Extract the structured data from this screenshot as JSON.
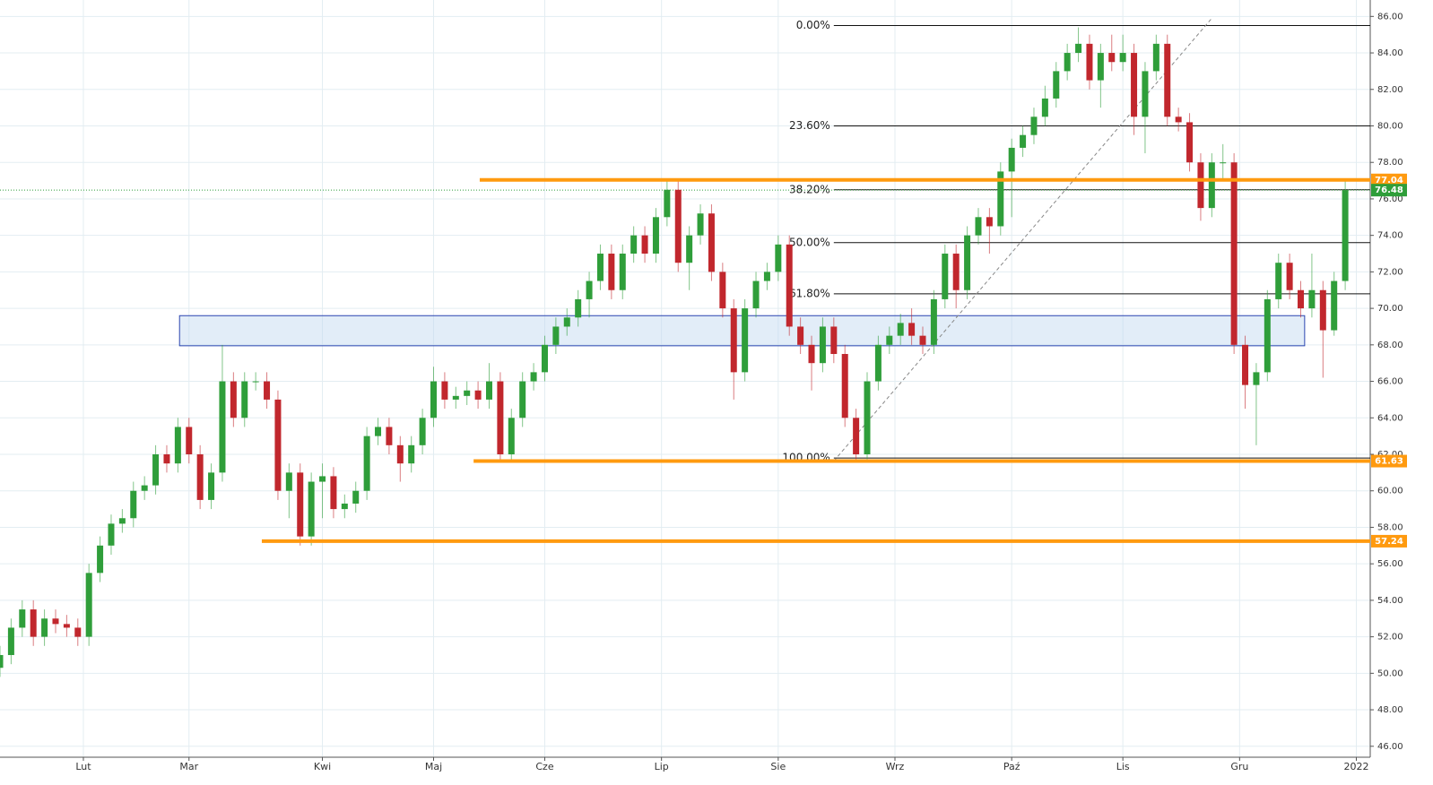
{
  "chart_data": {
    "type": "candlestick",
    "x": [
      0,
      2,
      4,
      6,
      8,
      10,
      12,
      14,
      16,
      18,
      20,
      22,
      24,
      26,
      28,
      30,
      32,
      34,
      36,
      38,
      40,
      42,
      44,
      46,
      48,
      50,
      52,
      54,
      56,
      58,
      60,
      62,
      64,
      66,
      68,
      70,
      72,
      74,
      76,
      78,
      80,
      82,
      84,
      86,
      88,
      90,
      92,
      94,
      96,
      98,
      100,
      102,
      104,
      106,
      108,
      110,
      112,
      114,
      116,
      118,
      120,
      122,
      124,
      126,
      128,
      130,
      132,
      134,
      136,
      138,
      140,
      142,
      144,
      146,
      148,
      150,
      152,
      154,
      156,
      158,
      160,
      162,
      164,
      166,
      168,
      170,
      172,
      174,
      176,
      178,
      180,
      182,
      184,
      186,
      188,
      190,
      192,
      194,
      196,
      198,
      200,
      202,
      204,
      206,
      208,
      210,
      212,
      214,
      216,
      218,
      220,
      222,
      224,
      226,
      228,
      230,
      232,
      234,
      236,
      238,
      240,
      242
    ],
    "open": [
      50.3,
      51,
      52.5,
      53.5,
      52,
      53,
      52.7,
      52.5,
      52,
      55.5,
      57,
      58.2,
      58.5,
      60,
      60.3,
      62,
      61.5,
      63.5,
      62,
      59.5,
      61,
      66,
      64,
      66,
      66,
      65,
      60,
      61,
      57.5,
      60.5,
      60.8,
      59,
      59.3,
      60,
      63,
      63.5,
      62.5,
      61.5,
      62.5,
      64,
      66,
      65,
      65.2,
      65.5,
      65,
      66,
      62,
      64,
      66,
      66.5,
      68,
      69,
      69.5,
      70.5,
      71.5,
      73,
      71,
      73,
      74,
      73,
      75,
      76.5,
      72.5,
      74,
      75.2,
      72,
      70,
      66.5,
      70,
      71.5,
      72,
      73.5,
      69,
      68,
      67,
      69,
      67.5,
      64,
      62,
      66,
      68,
      68.5,
      69.2,
      68.5,
      68,
      70.5,
      73,
      71,
      74,
      75,
      74.5,
      77.5,
      78.8,
      79.5,
      80.5,
      81.5,
      83,
      84,
      84.5,
      82.5,
      84,
      83.5,
      84,
      80.5,
      83,
      84.5,
      80.5,
      80.2,
      78,
      75.5,
      78,
      78,
      68,
      65.8,
      66.5,
      70.5,
      72.5,
      71,
      70,
      71,
      68.8,
      71.5
    ],
    "high": [
      51.5,
      53,
      54,
      54,
      53.5,
      53.5,
      53.2,
      53,
      56,
      57.5,
      58.7,
      59,
      60.5,
      60.8,
      62.5,
      62.5,
      64,
      64,
      62.5,
      61.5,
      68,
      66.5,
      66.5,
      66.5,
      66.5,
      65.5,
      61.5,
      61.5,
      61,
      61.5,
      61.3,
      59.8,
      60.5,
      63.5,
      64,
      64,
      63,
      63,
      64.5,
      66.8,
      66.5,
      65.7,
      66,
      66,
      67,
      66.5,
      64.5,
      66.5,
      67,
      68.5,
      69.5,
      70,
      71,
      72,
      73.5,
      73.5,
      73.5,
      74.5,
      74.5,
      75.5,
      77,
      77,
      74.5,
      75.7,
      75.7,
      72.5,
      70.5,
      70.5,
      72,
      72.5,
      74,
      74,
      69.5,
      68.5,
      69.5,
      69.5,
      68,
      64.5,
      66.5,
      68.5,
      69,
      69.7,
      70,
      69,
      71,
      73.5,
      73.5,
      74.5,
      75.5,
      75.5,
      78,
      79.3,
      80,
      81,
      82.2,
      83.5,
      84.5,
      85.4,
      85,
      84.5,
      85,
      85,
      84.5,
      83.5,
      85,
      85,
      81,
      80.7,
      78.5,
      78.5,
      79,
      78.5,
      68.5,
      67,
      71,
      73,
      73,
      71.5,
      73,
      71.5,
      72,
      77
    ],
    "low": [
      49.8,
      50.5,
      52,
      51.5,
      51.5,
      52.2,
      52,
      51.5,
      51.5,
      55,
      56.5,
      57.7,
      58,
      59.5,
      59.8,
      61,
      61,
      61.5,
      59,
      59,
      60.5,
      63.5,
      63.5,
      65.5,
      64.5,
      59.5,
      58.5,
      57,
      57,
      58.5,
      58.5,
      58.5,
      58.8,
      59.5,
      62.5,
      62,
      60.5,
      61,
      62,
      63.5,
      64.5,
      64.5,
      64.7,
      64.5,
      64.5,
      61.7,
      61.7,
      63.5,
      65.5,
      66,
      67.5,
      68.5,
      69,
      69.5,
      71,
      70.5,
      70.5,
      72.5,
      72.5,
      72.5,
      74.5,
      72,
      71,
      73.5,
      71.5,
      69.5,
      65,
      66,
      69.5,
      71,
      71.5,
      68.5,
      67.5,
      65.5,
      66.5,
      67,
      63.5,
      61.63,
      61.63,
      65.5,
      67.5,
      68,
      68,
      67.5,
      67.5,
      70,
      70,
      70.5,
      73.5,
      73,
      74,
      75,
      78.3,
      79,
      80,
      81,
      82.5,
      83.5,
      82,
      81,
      83,
      83,
      79.5,
      78.5,
      82.5,
      80,
      79.7,
      77.5,
      74.8,
      75,
      77,
      67.5,
      64.5,
      62.5,
      66,
      70,
      70.5,
      69.5,
      69.5,
      66.2,
      68.5,
      71
    ],
    "close": [
      51,
      52.5,
      53.5,
      52,
      53,
      52.7,
      52.5,
      52,
      55.5,
      57,
      58.2,
      58.5,
      60,
      60.3,
      62,
      61.5,
      63.5,
      62,
      59.5,
      61,
      66,
      64,
      66,
      66,
      65,
      60,
      61,
      57.5,
      60.5,
      60.8,
      59,
      59.3,
      60,
      63,
      63.5,
      62.5,
      61.5,
      62.5,
      64,
      66,
      65,
      65.2,
      65.5,
      65,
      66,
      62,
      64,
      66,
      66.5,
      68,
      69,
      69.5,
      70.5,
      71.5,
      73,
      71,
      73,
      74,
      73,
      75,
      76.5,
      72.5,
      74,
      75.2,
      72,
      70,
      66.5,
      70,
      71.5,
      72,
      73.5,
      69,
      68,
      67,
      69,
      67.5,
      64,
      62,
      66,
      68,
      68.5,
      69.2,
      68.5,
      68,
      70.5,
      73,
      71,
      74,
      75,
      74.5,
      77.5,
      78.8,
      79.5,
      80.5,
      81.5,
      83,
      84,
      84.5,
      82.5,
      84,
      83.5,
      84,
      80.5,
      83,
      84.5,
      80.5,
      80.2,
      78,
      75.5,
      78,
      78,
      68,
      65.8,
      66.5,
      70.5,
      72.5,
      71,
      70,
      71,
      68.8,
      71.5,
      76.48
    ],
    "up_color": "#2f9e3a",
    "down_color": "#c1272d",
    "xlim": [
      0,
      246.5
    ],
    "xticks": [
      {
        "value": 15,
        "label": "Lut"
      },
      {
        "value": 34,
        "label": "Mar"
      },
      {
        "value": 58,
        "label": "Kwi"
      },
      {
        "value": 78,
        "label": "Maj"
      },
      {
        "value": 98,
        "label": "Cze"
      },
      {
        "value": 119,
        "label": "Lip"
      },
      {
        "value": 140,
        "label": "Sie"
      },
      {
        "value": 161,
        "label": "Wrz"
      },
      {
        "value": 182,
        "label": "Paź"
      },
      {
        "value": 202,
        "label": "Lis"
      },
      {
        "value": 223,
        "label": "Gru"
      },
      {
        "value": 244,
        "label": "2022"
      }
    ],
    "ylim": [
      45.4,
      86.9
    ],
    "yticks": [
      {
        "value": 46,
        "label": "46.00"
      },
      {
        "value": 48,
        "label": "48.00"
      },
      {
        "value": 50,
        "label": "50.00"
      },
      {
        "value": 52,
        "label": "52.00"
      },
      {
        "value": 54,
        "label": "54.00"
      },
      {
        "value": 56,
        "label": "56.00"
      },
      {
        "value": 58,
        "label": "58.00"
      },
      {
        "value": 60,
        "label": "60.00"
      },
      {
        "value": 62,
        "label": "62.00"
      },
      {
        "value": 64,
        "label": "64.00"
      },
      {
        "value": 66,
        "label": "66.00"
      },
      {
        "value": 68,
        "label": "68.00"
      },
      {
        "value": 70,
        "label": "70.00"
      },
      {
        "value": 72,
        "label": "72.00"
      },
      {
        "value": 74,
        "label": "74.00"
      },
      {
        "value": 76,
        "label": "76.00"
      },
      {
        "value": 78,
        "label": "78.00"
      },
      {
        "value": 80,
        "label": "80.00"
      },
      {
        "value": 82,
        "label": "82.00"
      },
      {
        "value": 84,
        "label": "84.00"
      },
      {
        "value": 86,
        "label": "86.00"
      }
    ],
    "grid": true,
    "levels": [
      {
        "value": 77.04,
        "from": 86.3
      },
      {
        "value": 61.63,
        "from": 85.2
      },
      {
        "value": 57.24,
        "from": 47.1
      }
    ],
    "level_color": "#ff9a0f",
    "last_color": "#2f9e3a",
    "fib_from": 150,
    "fib_levels": [
      {
        "label": "0.00%",
        "value": 85.5
      },
      {
        "label": "23.60%",
        "value": 80
      },
      {
        "label": "38.20%",
        "value": 76.5
      },
      {
        "label": "50.00%",
        "value": 73.6
      },
      {
        "label": "61.80%",
        "value": 70.8
      },
      {
        "label": "100.00%",
        "value": 61.8
      }
    ],
    "trend_line": {
      "x": [
        150,
        218
      ],
      "y": [
        61.63,
        85.9
      ]
    },
    "zone": {
      "xlim": [
        32.3,
        234.7
      ],
      "ylim": [
        67.95,
        69.6
      ]
    }
  }
}
